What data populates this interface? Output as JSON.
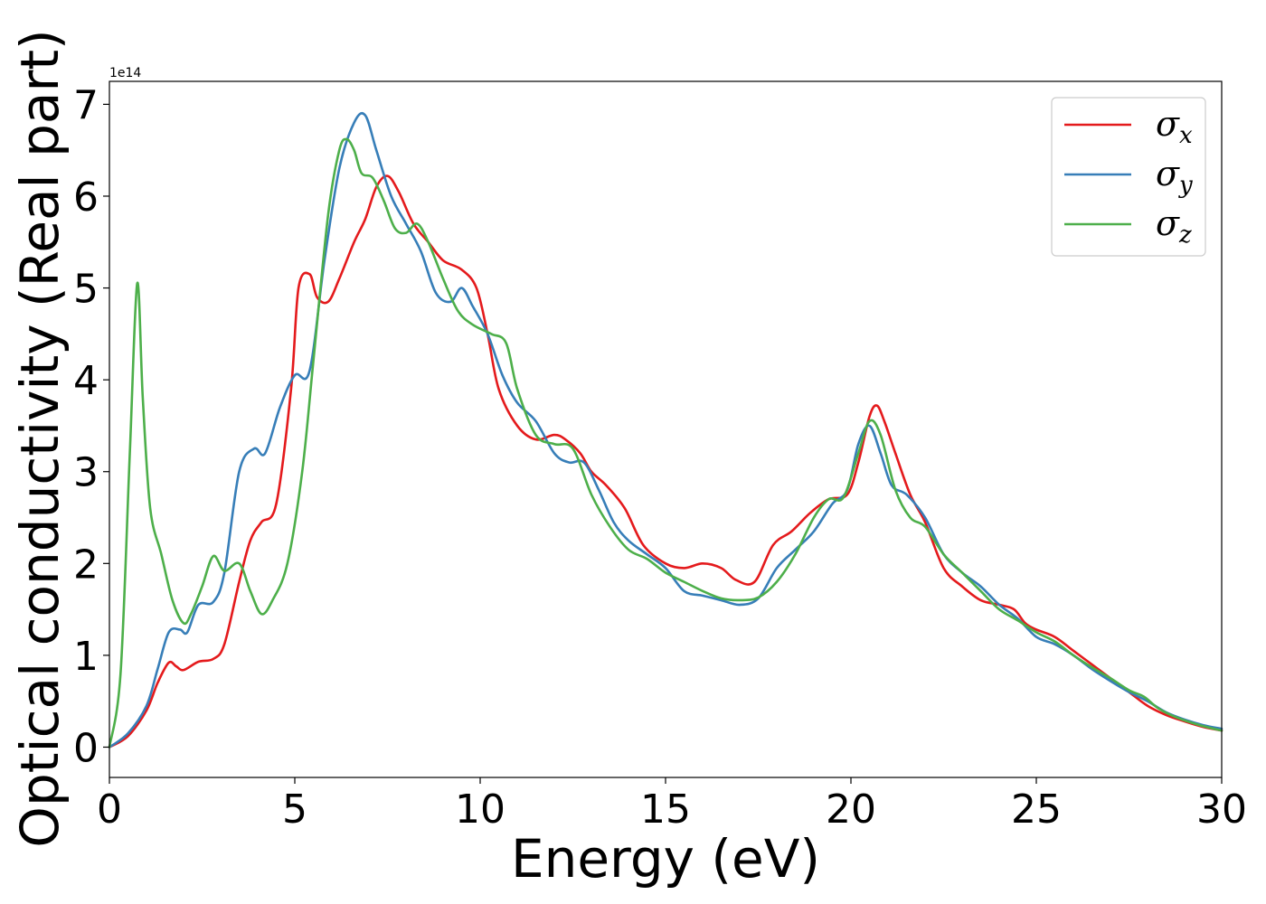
{
  "chart_data": {
    "type": "line",
    "xlabel": "Energy (eV)",
    "ylabel": "Optical conductivity (Real part)",
    "y_offset_label": "1e14",
    "y_scale": 100000000000000.0,
    "xlim": [
      0,
      30
    ],
    "ylim": [
      -0.33,
      7.25
    ],
    "xticks": [
      0,
      5,
      10,
      15,
      20,
      25,
      30
    ],
    "xtick_labels": [
      "0",
      "5",
      "10",
      "15",
      "20",
      "25",
      "30"
    ],
    "yticks": [
      0,
      1,
      2,
      3,
      4,
      5,
      6,
      7
    ],
    "ytick_labels": [
      "0",
      "1",
      "2",
      "3",
      "4",
      "5",
      "6",
      "7"
    ],
    "grid": false,
    "legend_position": "top-right",
    "series": [
      {
        "name": "σx",
        "legend_base": "σ",
        "legend_sub": "x",
        "color": "#e41a1c",
        "x": [
          0,
          0.5,
          1.0,
          1.3,
          1.6,
          1.8,
          2.0,
          2.4,
          2.8,
          3.1,
          3.5,
          3.8,
          4.1,
          4.5,
          4.9,
          5.1,
          5.4,
          5.6,
          5.9,
          6.2,
          6.6,
          6.9,
          7.2,
          7.5,
          7.8,
          8.2,
          8.6,
          9.0,
          9.5,
          9.9,
          10.2,
          10.5,
          11.0,
          11.5,
          12.0,
          12.3,
          12.7,
          13.0,
          13.4,
          13.9,
          14.4,
          15.0,
          15.5,
          16.0,
          16.5,
          16.9,
          17.4,
          17.9,
          18.4,
          18.9,
          19.4,
          19.9,
          20.2,
          20.5,
          20.7,
          20.9,
          21.2,
          21.6,
          22.0,
          22.5,
          23.0,
          23.5,
          24.0,
          24.4,
          24.7,
          25.0,
          25.5,
          26.0,
          26.5,
          27.0,
          27.5,
          28.0,
          28.5,
          29.0,
          29.5,
          30.0
        ],
        "y": [
          0,
          0.12,
          0.4,
          0.7,
          0.92,
          0.88,
          0.84,
          0.93,
          0.96,
          1.12,
          1.8,
          2.25,
          2.45,
          2.65,
          3.9,
          5.0,
          5.15,
          4.9,
          4.85,
          5.1,
          5.5,
          5.75,
          6.1,
          6.22,
          6.05,
          5.7,
          5.5,
          5.3,
          5.2,
          5.0,
          4.5,
          3.9,
          3.5,
          3.35,
          3.4,
          3.35,
          3.2,
          3.0,
          2.85,
          2.6,
          2.2,
          2.0,
          1.95,
          2.0,
          1.95,
          1.82,
          1.8,
          2.2,
          2.35,
          2.55,
          2.7,
          2.75,
          3.1,
          3.6,
          3.72,
          3.55,
          3.2,
          2.75,
          2.45,
          1.95,
          1.75,
          1.6,
          1.55,
          1.5,
          1.35,
          1.28,
          1.2,
          1.05,
          0.9,
          0.75,
          0.6,
          0.45,
          0.35,
          0.28,
          0.22,
          0.18
        ]
      },
      {
        "name": "σy",
        "legend_base": "σ",
        "legend_sub": "y",
        "color": "#377eb8",
        "x": [
          0,
          0.5,
          1.0,
          1.3,
          1.6,
          1.9,
          2.1,
          2.4,
          2.8,
          3.1,
          3.5,
          3.9,
          4.2,
          4.6,
          5.0,
          5.4,
          5.8,
          6.2,
          6.6,
          6.9,
          7.2,
          7.6,
          8.0,
          8.4,
          8.8,
          9.2,
          9.5,
          9.8,
          10.2,
          10.6,
          11.0,
          11.5,
          12.0,
          12.4,
          12.8,
          13.2,
          13.6,
          14.0,
          14.5,
          15.0,
          15.5,
          16.0,
          16.5,
          17.0,
          17.5,
          18.0,
          18.5,
          19.0,
          19.5,
          19.9,
          20.2,
          20.5,
          20.8,
          21.1,
          21.5,
          22.0,
          22.5,
          23.0,
          23.5,
          24.0,
          24.5,
          25.0,
          25.5,
          26.0,
          26.5,
          27.0,
          27.5,
          28.0,
          28.5,
          29.0,
          29.5,
          30.0
        ],
        "y": [
          0,
          0.15,
          0.45,
          0.85,
          1.25,
          1.28,
          1.25,
          1.55,
          1.58,
          1.9,
          3.0,
          3.25,
          3.2,
          3.7,
          4.05,
          4.1,
          5.3,
          6.3,
          6.8,
          6.88,
          6.5,
          6.0,
          5.7,
          5.4,
          4.95,
          4.85,
          5.0,
          4.8,
          4.5,
          4.05,
          3.75,
          3.55,
          3.2,
          3.1,
          3.1,
          2.8,
          2.45,
          2.25,
          2.1,
          1.95,
          1.7,
          1.65,
          1.6,
          1.55,
          1.62,
          1.95,
          2.15,
          2.35,
          2.65,
          2.8,
          3.3,
          3.5,
          3.2,
          2.85,
          2.75,
          2.5,
          2.1,
          1.9,
          1.75,
          1.55,
          1.4,
          1.2,
          1.12,
          1.0,
          0.85,
          0.72,
          0.6,
          0.5,
          0.38,
          0.3,
          0.24,
          0.2
        ]
      },
      {
        "name": "σz",
        "legend_base": "σ",
        "legend_sub": "z",
        "color": "#4daf4a",
        "x": [
          0,
          0.3,
          0.55,
          0.75,
          0.9,
          1.1,
          1.4,
          1.7,
          2.0,
          2.2,
          2.5,
          2.8,
          3.1,
          3.5,
          3.8,
          4.1,
          4.4,
          4.8,
          5.2,
          5.5,
          5.9,
          6.2,
          6.4,
          6.6,
          6.8,
          7.1,
          7.4,
          7.7,
          8.0,
          8.3,
          8.6,
          9.0,
          9.4,
          9.8,
          10.3,
          10.7,
          11.0,
          11.5,
          12.0,
          12.5,
          13.0,
          13.5,
          14.0,
          14.5,
          15.0,
          15.5,
          16.0,
          16.5,
          17.0,
          17.5,
          18.0,
          18.5,
          19.0,
          19.4,
          19.8,
          20.2,
          20.5,
          20.8,
          21.2,
          21.6,
          22.0,
          22.5,
          23.0,
          23.5,
          24.0,
          24.5,
          25.0,
          25.5,
          26.0,
          26.5,
          27.0,
          27.5,
          27.9,
          28.3,
          28.8,
          29.4,
          30.0
        ],
        "y": [
          0,
          0.8,
          3.2,
          5.05,
          3.8,
          2.6,
          2.1,
          1.6,
          1.35,
          1.45,
          1.75,
          2.08,
          1.92,
          2.0,
          1.7,
          1.45,
          1.6,
          2.0,
          3.0,
          4.2,
          5.8,
          6.5,
          6.62,
          6.5,
          6.25,
          6.2,
          5.95,
          5.65,
          5.6,
          5.7,
          5.5,
          5.1,
          4.75,
          4.6,
          4.5,
          4.4,
          3.9,
          3.4,
          3.3,
          3.25,
          2.75,
          2.4,
          2.15,
          2.05,
          1.9,
          1.8,
          1.7,
          1.62,
          1.6,
          1.63,
          1.8,
          2.1,
          2.5,
          2.7,
          2.72,
          3.2,
          3.55,
          3.4,
          2.8,
          2.5,
          2.4,
          2.1,
          1.9,
          1.7,
          1.5,
          1.38,
          1.25,
          1.15,
          1.0,
          0.87,
          0.75,
          0.62,
          0.55,
          0.42,
          0.32,
          0.24,
          0.18
        ]
      }
    ]
  }
}
